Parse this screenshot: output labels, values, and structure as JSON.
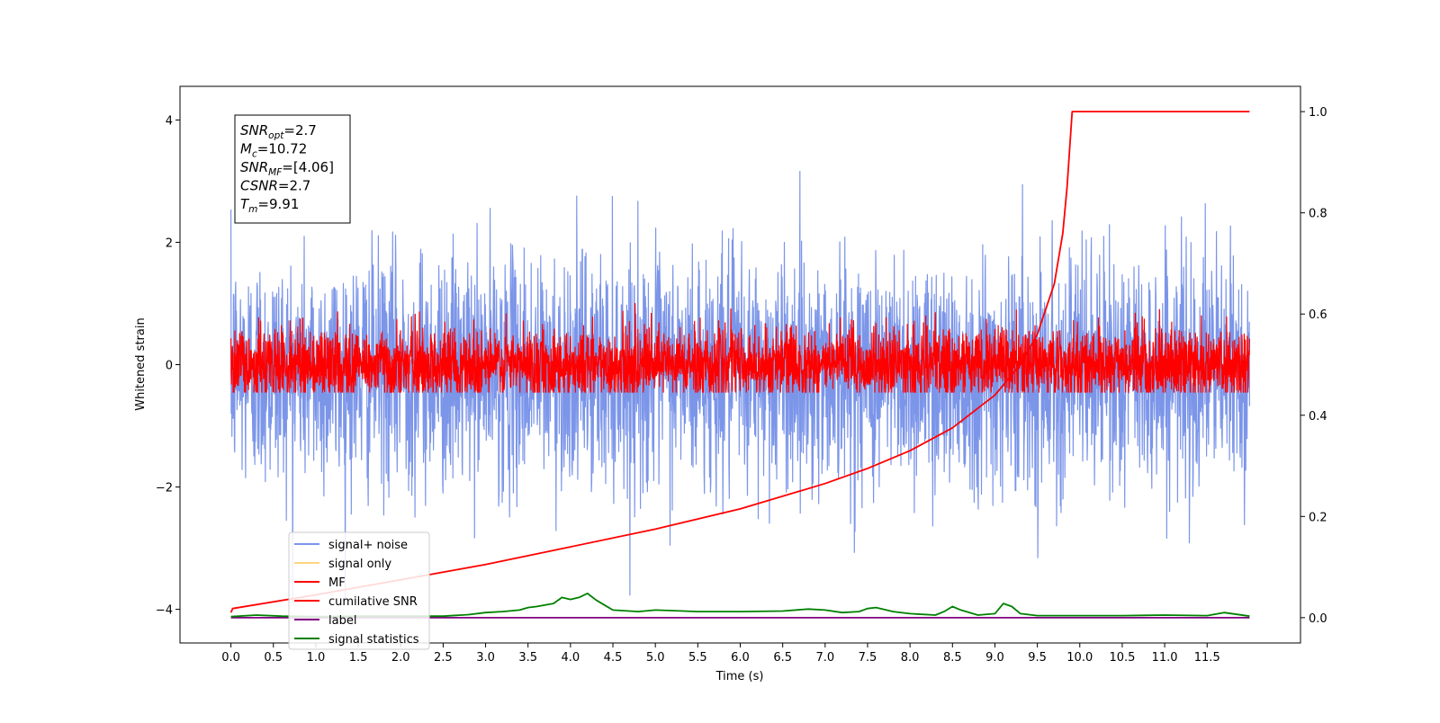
{
  "chart_data": {
    "type": "line",
    "xlabel": "Time (s)",
    "ylabel": "Whitened strain",
    "xlim": [
      -0.6,
      12.6
    ],
    "ylim": [
      -4.55,
      4.55
    ],
    "ylim_right": [
      -0.05,
      1.05
    ],
    "x_ticks": [
      "0.0",
      "0.5",
      "1.0",
      "1.5",
      "2.0",
      "2.5",
      "3.0",
      "3.5",
      "4.0",
      "4.5",
      "5.0",
      "5.5",
      "6.0",
      "6.5",
      "7.0",
      "7.5",
      "8.0",
      "8.5",
      "9.0",
      "9.5",
      "10.0",
      "10.5",
      "11.0",
      "11.5"
    ],
    "y_ticks_left": [
      "4",
      "2",
      "0",
      "−2",
      "−4"
    ],
    "y_ticks_right": [
      "1.0",
      "0.8",
      "0.6",
      "0.4",
      "0.2",
      "0.0"
    ],
    "grid": false,
    "legend_position": "lower-left",
    "annotation": {
      "lines": [
        {
          "base": "SNR",
          "sub": "opt",
          "value": "=2.7"
        },
        {
          "base": "M",
          "sub": "c",
          "value": "=10.72"
        },
        {
          "base": "SNR",
          "sub": "MF",
          "value": "=[4.06]"
        },
        {
          "base": "CSNR",
          "sub": "",
          "value": "=2.7"
        },
        {
          "base": "T",
          "sub": "m",
          "value": "=9.91"
        }
      ]
    },
    "series": [
      {
        "name": "signal+ noise",
        "color": "#7b95e9",
        "axis": "left",
        "x_range": [
          0,
          12
        ],
        "mean": -0.1,
        "std": 0.95,
        "min": -3.9,
        "max": 4.1
      },
      {
        "name": "signal only",
        "color": "#ffd580",
        "axis": "left",
        "x_range": [
          0,
          12
        ],
        "mean": 0,
        "std": 0
      },
      {
        "name": "MF",
        "color": "#ff0000",
        "axis": "left",
        "x_range": [
          0,
          12
        ],
        "mean": 0,
        "std": 0.3,
        "min": -0.45,
        "max": 1.0
      },
      {
        "name": "cumilative SNR",
        "color": "#ff0000",
        "axis": "right",
        "x": [
          0.0,
          0.02,
          1.0,
          2.0,
          3.0,
          4.0,
          5.0,
          6.0,
          7.0,
          7.5,
          8.0,
          8.5,
          9.0,
          9.3,
          9.5,
          9.7,
          9.8,
          9.85,
          9.91,
          10.0,
          12.0
        ],
        "y": [
          0.01,
          0.018,
          0.045,
          0.075,
          0.105,
          0.14,
          0.175,
          0.215,
          0.265,
          0.295,
          0.33,
          0.375,
          0.44,
          0.5,
          0.56,
          0.66,
          0.76,
          0.85,
          1.0,
          1.0,
          1.0
        ]
      },
      {
        "name": "label",
        "color": "#800080",
        "axis": "right",
        "x": [
          0.0,
          12.0
        ],
        "y": [
          0.0,
          0.0
        ]
      },
      {
        "name": "signal statistics",
        "color": "#008000",
        "axis": "right",
        "x": [
          0.0,
          0.3,
          0.6,
          1.0,
          1.5,
          2.0,
          2.5,
          2.8,
          3.0,
          3.2,
          3.4,
          3.5,
          3.6,
          3.8,
          3.9,
          4.0,
          4.1,
          4.2,
          4.3,
          4.4,
          4.5,
          4.8,
          5.0,
          5.5,
          6.0,
          6.5,
          6.8,
          7.0,
          7.2,
          7.4,
          7.5,
          7.6,
          7.8,
          8.0,
          8.3,
          8.4,
          8.5,
          8.6,
          8.8,
          9.0,
          9.1,
          9.2,
          9.3,
          9.5,
          10.0,
          10.5,
          11.0,
          11.5,
          11.7,
          12.0
        ],
        "y": [
          0.002,
          0.005,
          0.003,
          0.002,
          0.003,
          0.003,
          0.003,
          0.006,
          0.01,
          0.012,
          0.015,
          0.02,
          0.022,
          0.028,
          0.04,
          0.036,
          0.04,
          0.048,
          0.035,
          0.025,
          0.015,
          0.012,
          0.015,
          0.012,
          0.012,
          0.013,
          0.017,
          0.015,
          0.01,
          0.012,
          0.018,
          0.02,
          0.012,
          0.008,
          0.005,
          0.012,
          0.022,
          0.015,
          0.005,
          0.008,
          0.028,
          0.022,
          0.008,
          0.004,
          0.004,
          0.004,
          0.005,
          0.004,
          0.01,
          0.003
        ]
      }
    ]
  }
}
